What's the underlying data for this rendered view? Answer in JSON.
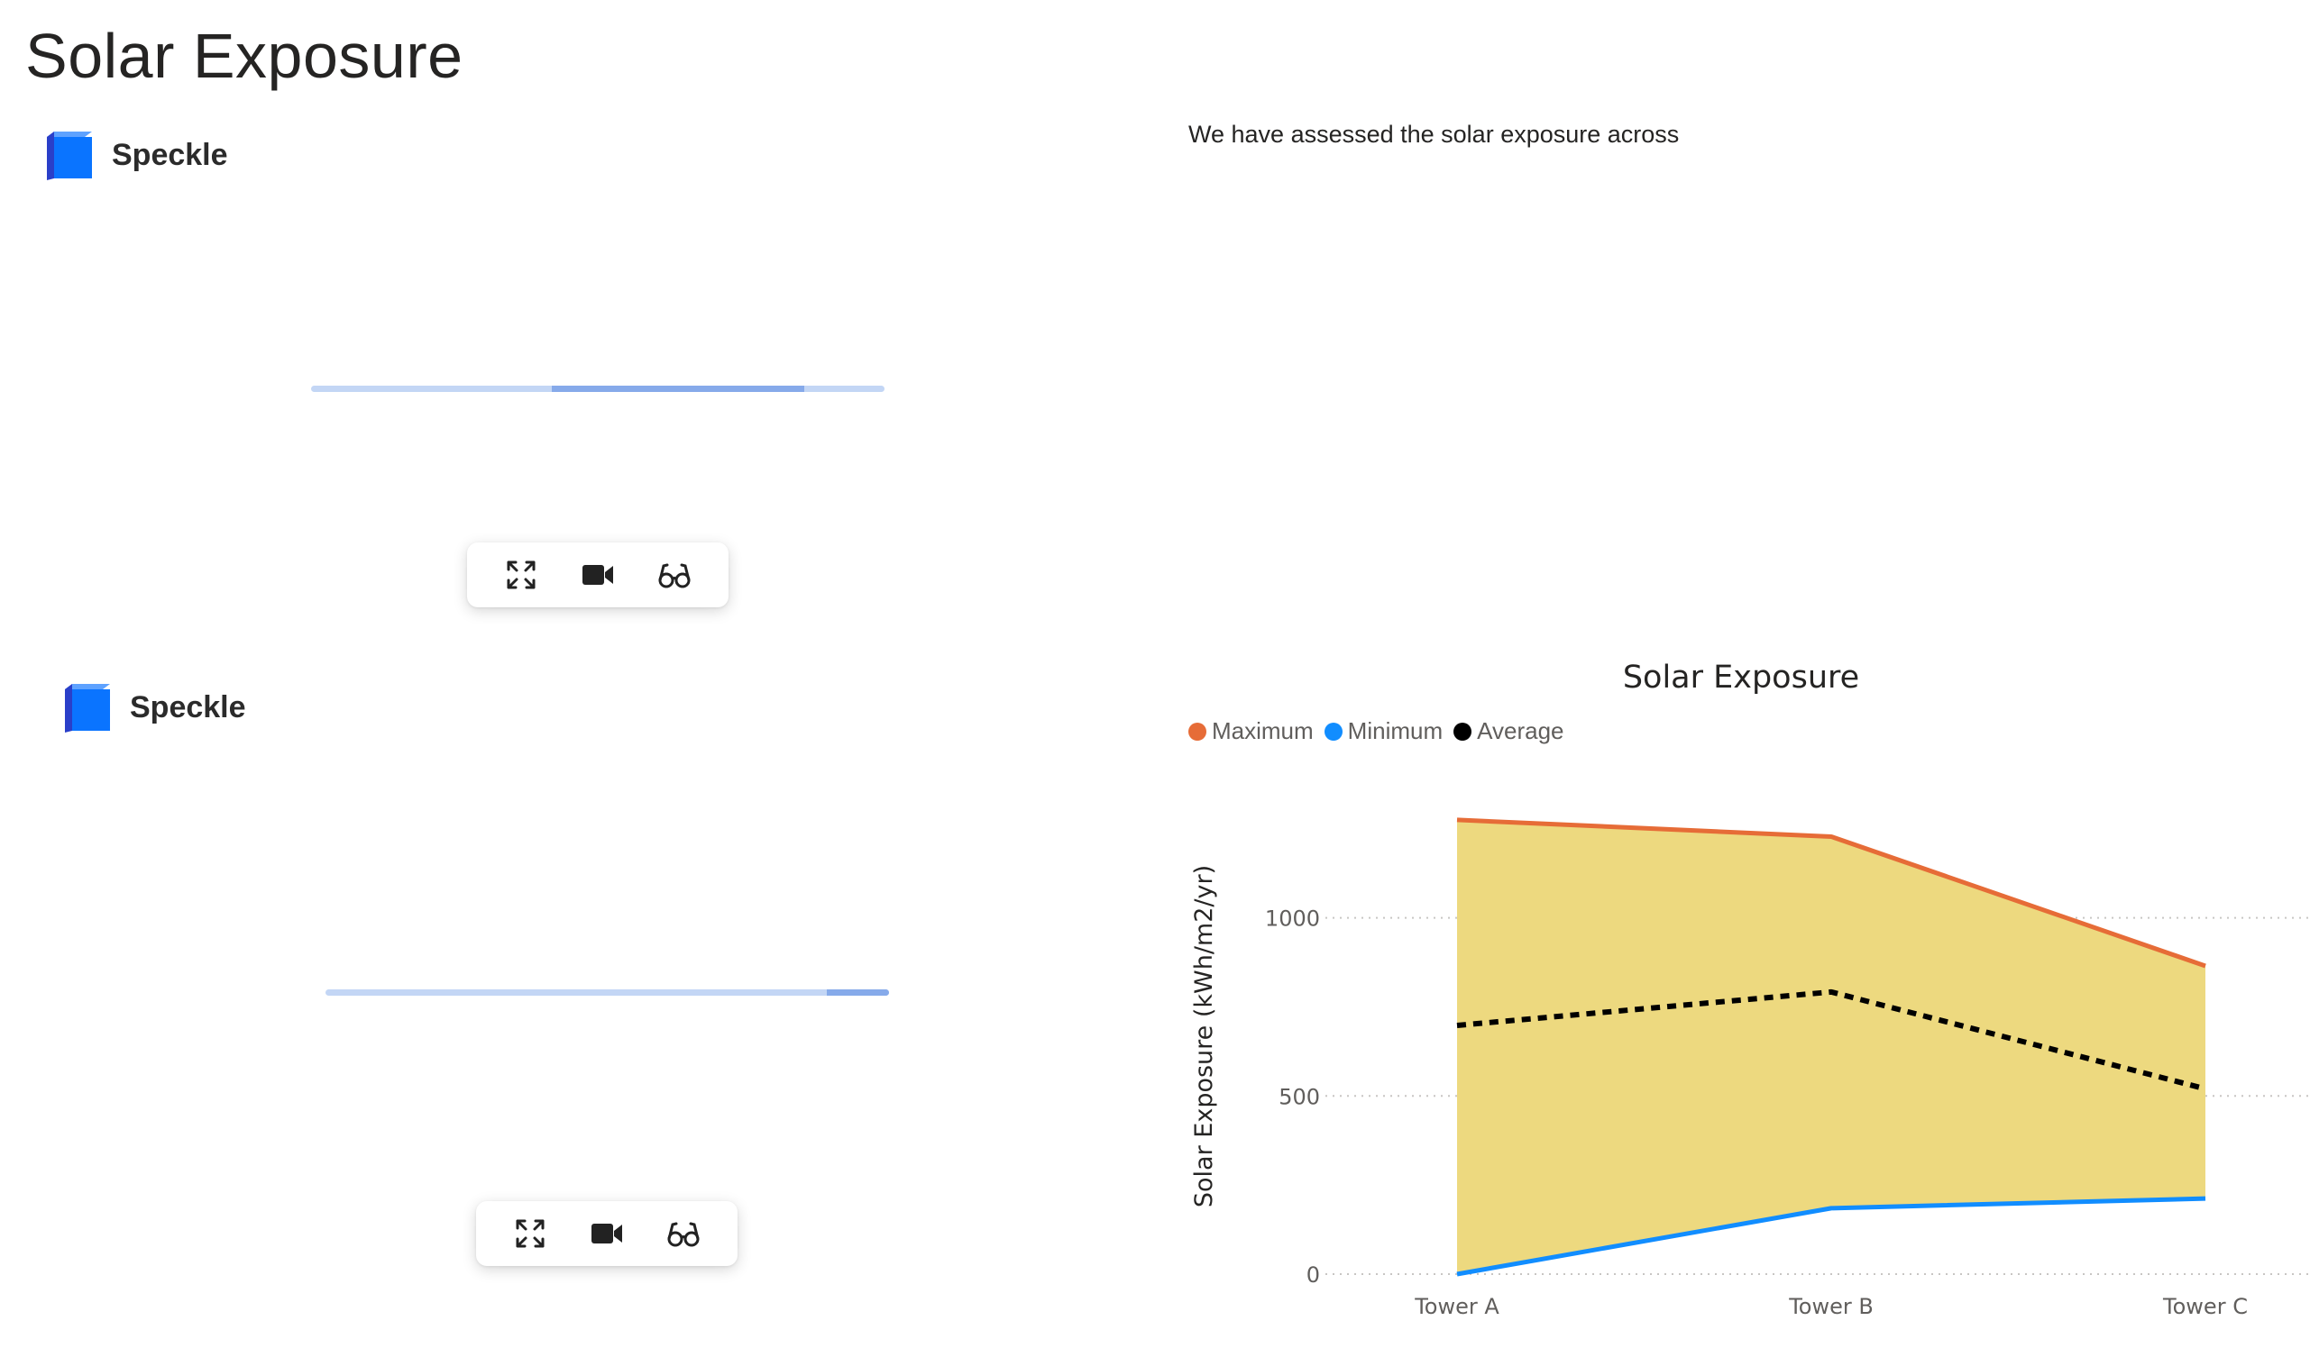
{
  "page": {
    "title": "Solar Exposure"
  },
  "viewers": [
    {
      "brand": "Speckle",
      "progress": {
        "start": 0.42,
        "end": 0.86
      },
      "toolbar": {
        "fullscreen_icon": "expand-icon",
        "camera_icon": "video-camera-icon",
        "view_icon": "glasses-icon"
      }
    },
    {
      "brand": "Speckle",
      "progress": {
        "start": 0.89,
        "end": 1.0
      },
      "toolbar": {
        "fullscreen_icon": "expand-icon",
        "camera_icon": "video-camera-icon",
        "view_icon": "glasses-icon"
      }
    }
  ],
  "description": "We have assessed the solar exposure across",
  "colors": {
    "maximum": "#E66C37",
    "minimum": "#118DFF",
    "average": "#000000",
    "fill": "#EDD97F",
    "brand_blue": "#0A74FF"
  },
  "chart_data": {
    "type": "area",
    "title": "Solar Exposure",
    "ylabel": "Solar Exposure (kWh/m2/yr)",
    "xlabel": "",
    "categories": [
      "Tower A",
      "Tower B",
      "Tower C"
    ],
    "series": [
      {
        "name": "Maximum",
        "values": [
          1275,
          1228,
          865
        ],
        "color": "#E66C37",
        "style": "solid"
      },
      {
        "name": "Minimum",
        "values": [
          0,
          185,
          212
        ],
        "color": "#118DFF",
        "style": "solid"
      },
      {
        "name": "Average",
        "values": [
          698,
          792,
          520
        ],
        "color": "#000000",
        "style": "dashed"
      }
    ],
    "band_fill": "#EDD97F",
    "ylim": [
      0,
      1300
    ],
    "yticks": [
      0,
      500,
      1000
    ],
    "grid": true,
    "legend": "top-left"
  }
}
